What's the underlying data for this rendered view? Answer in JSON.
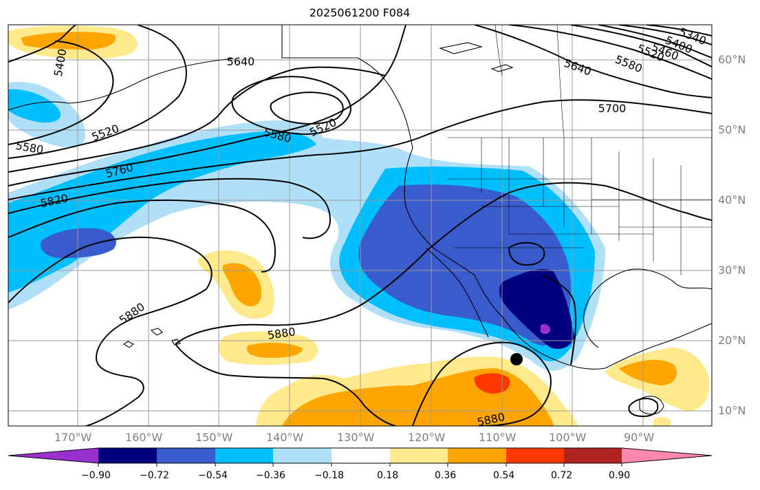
{
  "title": "2025061200 F084",
  "map": {
    "lon_labels": [
      "170°W",
      "160°W",
      "150°W",
      "140°W",
      "130°W",
      "120°W",
      "110°W",
      "100°W",
      "90°W"
    ],
    "lat_labels": [
      "60°N",
      "50°N",
      "40°N",
      "30°N",
      "20°N",
      "10°N"
    ],
    "contour_labels": [
      "5400",
      "5640",
      "5520",
      "5580",
      "5520",
      "5580",
      "5760",
      "5820",
      "5880",
      "5880",
      "5880",
      "5640",
      "5700",
      "5580",
      "5520",
      "5460",
      "5400",
      "5340"
    ],
    "marker": "storm-center-dot"
  },
  "colorbar": {
    "ticks": [
      "−0.90",
      "−0.72",
      "−0.54",
      "−0.36",
      "−0.18",
      "0.18",
      "0.36",
      "0.54",
      "0.72",
      "0.90"
    ],
    "colors": [
      "#9b30d0",
      "#000080",
      "#3a5bcb",
      "#00bfff",
      "#b0e0f8",
      "#ffffff",
      "#ffe98a",
      "#ffa500",
      "#ff3800",
      "#b22222",
      "#ff88b0"
    ]
  }
}
